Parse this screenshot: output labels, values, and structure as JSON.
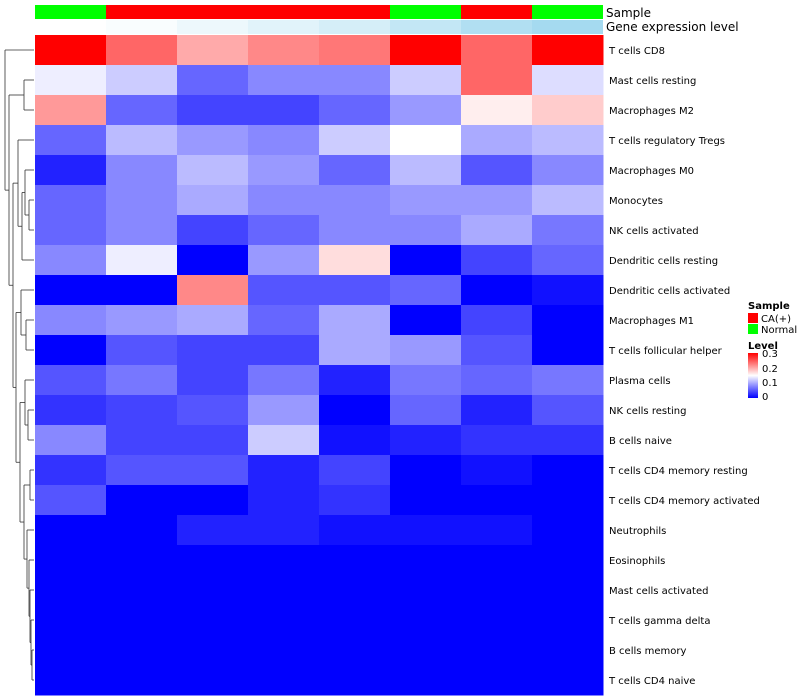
{
  "chart_data": {
    "type": "heatmap",
    "title": "",
    "columns": 8,
    "annotation_tracks": [
      {
        "name": "Sample",
        "values": [
          "Normal",
          "CA(+)",
          "CA(+)",
          "CA(+)",
          "CA(+)",
          "Normal",
          "CA(+)",
          "Normal"
        ]
      },
      {
        "name": "Gene expression level",
        "values": [
          0.0,
          0.05,
          0.15,
          0.25,
          0.35,
          0.5,
          0.65,
          0.75
        ]
      }
    ],
    "rows": [
      "T cells CD8",
      "Mast cells resting",
      "Macrophages M2",
      "T cells regulatory  Tregs",
      "Macrophages M0",
      "Monocytes",
      "NK cells activated",
      "Dendritic cells resting",
      "Dendritic cells activated",
      "Macrophages M1",
      "T cells follicular helper",
      "Plasma cells",
      "NK cells resting",
      "B cells naive",
      "T cells CD4 memory resting",
      "T cells CD4 memory activated",
      "Neutrophils",
      "Eosinophils",
      "Mast cells activated",
      "T cells gamma delta",
      "B cells memory",
      "T cells CD4 naive"
    ],
    "values": [
      [
        0.3,
        0.24,
        0.2,
        0.22,
        0.23,
        0.3,
        0.24,
        0.3
      ],
      [
        0.14,
        0.12,
        0.06,
        0.08,
        0.08,
        0.12,
        0.24,
        0.13
      ],
      [
        0.21,
        0.06,
        0.04,
        0.04,
        0.06,
        0.09,
        0.16,
        0.18
      ],
      [
        0.06,
        0.11,
        0.09,
        0.08,
        0.12,
        0.15,
        0.1,
        0.11
      ],
      [
        0.02,
        0.08,
        0.11,
        0.09,
        0.06,
        0.11,
        0.05,
        0.08
      ],
      [
        0.06,
        0.08,
        0.1,
        0.08,
        0.08,
        0.09,
        0.09,
        0.11
      ],
      [
        0.06,
        0.08,
        0.04,
        0.06,
        0.08,
        0.08,
        0.1,
        0.07
      ],
      [
        0.08,
        0.14,
        0.0,
        0.09,
        0.17,
        0.0,
        0.04,
        0.06
      ],
      [
        0.0,
        0.0,
        0.22,
        0.05,
        0.05,
        0.06,
        0.0,
        0.01
      ],
      [
        0.08,
        0.09,
        0.1,
        0.06,
        0.1,
        0.0,
        0.04,
        0.0
      ],
      [
        0.0,
        0.05,
        0.04,
        0.04,
        0.1,
        0.09,
        0.05,
        0.0
      ],
      [
        0.05,
        0.07,
        0.04,
        0.07,
        0.02,
        0.07,
        0.06,
        0.07
      ],
      [
        0.03,
        0.04,
        0.05,
        0.09,
        0.0,
        0.06,
        0.02,
        0.05
      ],
      [
        0.08,
        0.04,
        0.04,
        0.12,
        0.01,
        0.02,
        0.03,
        0.03
      ],
      [
        0.03,
        0.05,
        0.05,
        0.02,
        0.04,
        0.0,
        0.01,
        0.0
      ],
      [
        0.05,
        0.0,
        0.0,
        0.02,
        0.03,
        0.0,
        0.0,
        0.0
      ],
      [
        0.0,
        0.0,
        0.02,
        0.02,
        0.01,
        0.01,
        0.01,
        0.0
      ],
      [
        0,
        0,
        0,
        0,
        0,
        0,
        0,
        0
      ],
      [
        0,
        0,
        0,
        0,
        0,
        0,
        0,
        0
      ],
      [
        0,
        0,
        0,
        0,
        0,
        0,
        0,
        0
      ],
      [
        0,
        0,
        0,
        0,
        0,
        0,
        0,
        0
      ],
      [
        0,
        0,
        0,
        0,
        0,
        0,
        0,
        0
      ]
    ],
    "color_scale": {
      "min": 0,
      "max": 0.3,
      "colors": [
        "#0000ff",
        "#ffffff",
        "#ff0000"
      ],
      "mid": 0.15
    },
    "legend": {
      "sample": {
        "title": "Sample",
        "entries": [
          {
            "label": "CA(+)",
            "color": "#ff0000"
          },
          {
            "label": "Normal",
            "color": "#00ff00"
          }
        ]
      },
      "level": {
        "title": "Level",
        "ticks": [
          "0.3",
          "0.2",
          "0.1",
          "0"
        ],
        "tick_values": [
          0.3,
          0.2,
          0.1,
          0
        ]
      }
    },
    "sample_colors": {
      "CA(+)": "#ff0000",
      "Normal": "#00ff00"
    },
    "gene_expr_colors": [
      "#ffffff",
      "#87ceeb"
    ]
  }
}
